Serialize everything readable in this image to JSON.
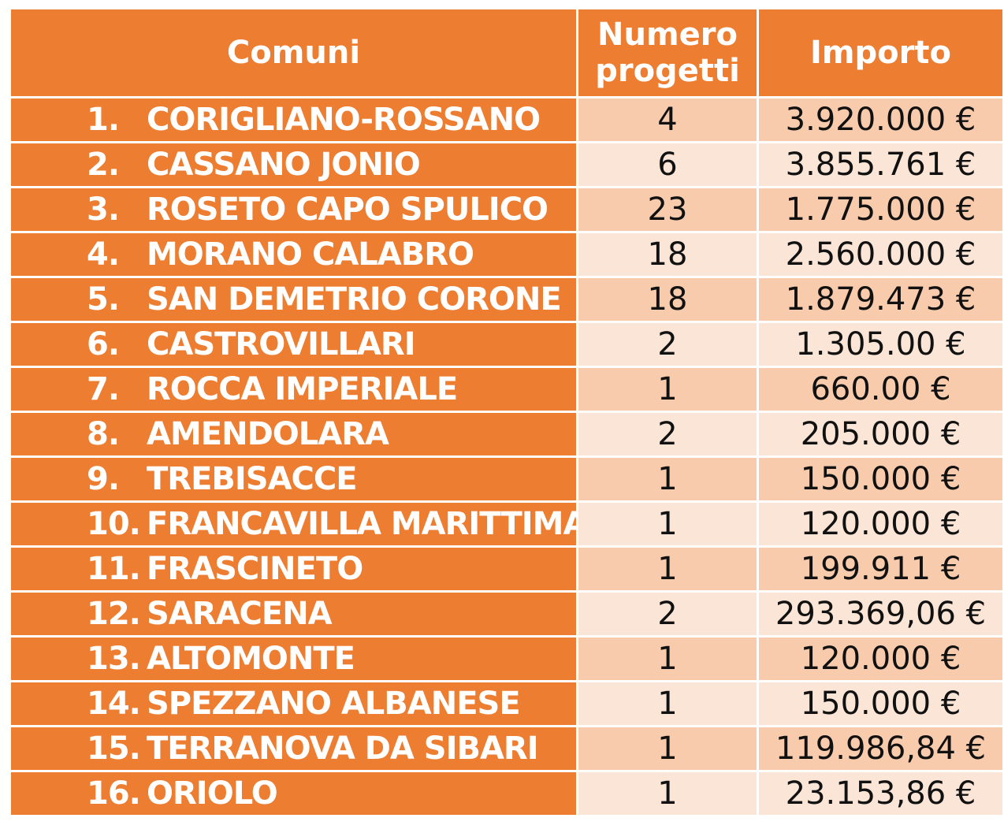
{
  "headers": {
    "comuni": "Comuni",
    "numero_line1": "Numero",
    "numero_line2": "progetti",
    "importo": "Importo"
  },
  "rows": [
    {
      "n": "1.",
      "comune": "CORIGLIANO-ROSSANO",
      "progetti": "4",
      "importo": "3.920.000 €"
    },
    {
      "n": "2.",
      "comune": "CASSANO JONIO",
      "progetti": "6",
      "importo": "3.855.761 €"
    },
    {
      "n": "3.",
      "comune": "ROSETO CAPO SPULICO",
      "progetti": "23",
      "importo": "1.775.000 €"
    },
    {
      "n": "4.",
      "comune": "MORANO CALABRO",
      "progetti": "18",
      "importo": "2.560.000 €"
    },
    {
      "n": "5.",
      "comune": "SAN DEMETRIO CORONE",
      "progetti": "18",
      "importo": "1.879.473 €"
    },
    {
      "n": "6.",
      "comune": "CASTROVILLARI",
      "progetti": "2",
      "importo": "1.305.00 €"
    },
    {
      "n": "7.",
      "comune": "ROCCA IMPERIALE",
      "progetti": "1",
      "importo": "660.00 €"
    },
    {
      "n": "8.",
      "comune": "AMENDOLARA",
      "progetti": "2",
      "importo": "205.000 €"
    },
    {
      "n": "9.",
      "comune": "TREBISACCE",
      "progetti": "1",
      "importo": "150.000 €"
    },
    {
      "n": "10.",
      "comune": "FRANCAVILLA MARITTIMA",
      "progetti": "1",
      "importo": "120.000 €"
    },
    {
      "n": "11.",
      "comune": "FRASCINETO",
      "progetti": "1",
      "importo": "199.911 €"
    },
    {
      "n": "12.",
      "comune": "SARACENA",
      "progetti": "2",
      "importo": "293.369,06 €"
    },
    {
      "n": "13.",
      "comune": "ALTOMONTE",
      "progetti": "1",
      "importo": "120.000 €"
    },
    {
      "n": "14.",
      "comune": "SPEZZANO ALBANESE",
      "progetti": "1",
      "importo": "150.000 €"
    },
    {
      "n": "15.",
      "comune": "TERRANOVA DA SIBARI",
      "progetti": "1",
      "importo": "119.986,84 €"
    },
    {
      "n": "16.",
      "comune": "ORIOLO",
      "progetti": "1",
      "importo": "23.153,86 €"
    }
  ],
  "colors": {
    "header_bg": "#ed7d31",
    "name_bg": "#ed7d31",
    "row_odd_bg": "#f8cbad",
    "row_even_bg": "#fbe5d6",
    "header_text": "#ffffff"
  }
}
